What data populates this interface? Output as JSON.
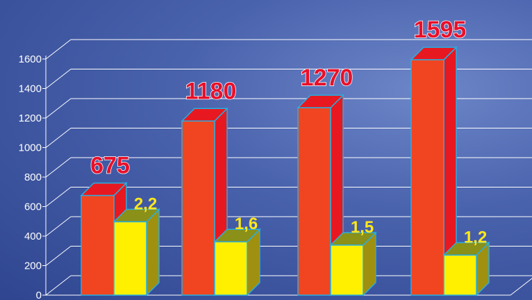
{
  "chart_data": {
    "type": "bar",
    "categories": [
      "",
      "",
      "",
      ""
    ],
    "series": [
      {
        "values": [
          675,
          1180,
          1270,
          1595
        ],
        "labels": [
          "675",
          "1180",
          "1270",
          "1595"
        ],
        "color": "#f04520",
        "side_color": "#e81820",
        "top_color": "#e81820"
      },
      {
        "values": [
          2.2,
          1.6,
          1.5,
          1.2
        ],
        "labels": [
          "2,2",
          "1,6",
          "1,5",
          "1,2"
        ],
        "color": "#fff000",
        "side_color": "#a09010",
        "top_color": "#8a9018"
      }
    ],
    "y_ticks": [
      "0",
      "200",
      "400",
      "600",
      "800",
      "1000",
      "1200",
      "1400",
      "1600"
    ],
    "ylim": [
      0,
      1600
    ],
    "grid": true,
    "border_color": "#29aee0"
  }
}
